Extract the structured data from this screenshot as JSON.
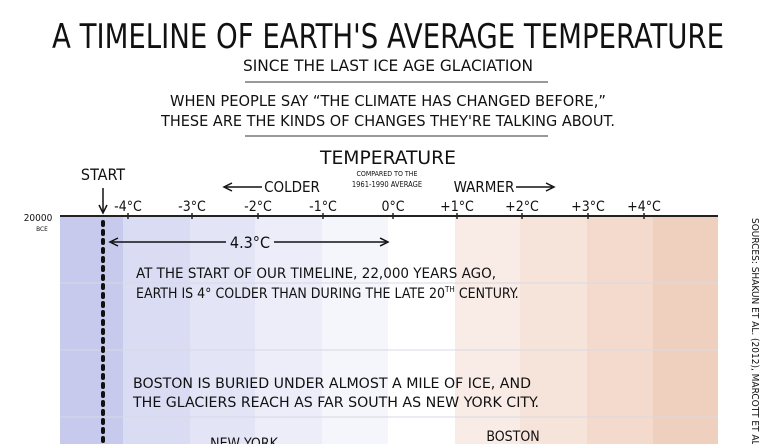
{
  "header": {
    "title": "A TIMELINE OF EARTH'S AVERAGE TEMPERATURE",
    "subtitle": "SINCE THE LAST ICE AGE GLACIATION",
    "intro": [
      "WHEN PEOPLE SAY “THE CLIMATE HAS CHANGED BEFORE,”",
      "THESE ARE THE KINDS OF CHANGES THEY'RE TALKING ABOUT."
    ]
  },
  "axis": {
    "title": "TEMPERATURE",
    "note": [
      "COMPARED TO THE",
      "1961-1990 AVERAGE"
    ],
    "colder": "COLDER",
    "warmer": "WARMER",
    "start": "START",
    "ticks": [
      "-4°C",
      "-3°C",
      "-2°C",
      "-1°C",
      "0°C",
      "+1°C",
      "+2°C",
      "+3°C",
      "+4°C"
    ]
  },
  "timeline": {
    "start_year": "20000",
    "start_era": "BCE",
    "difference": "4.3°C"
  },
  "notes": [
    [
      "AT THE START OF OUR TIMELINE, 22,000 YEARS AGO,",
      "EARTH IS 4° COLDER THAN DURING THE LATE 20",
      "TH",
      " CENTURY."
    ],
    [
      "BOSTON IS BURIED UNDER ALMOST A MILE OF ICE, AND",
      "THE GLACIERS REACH AS FAR SOUTH AS NEW YORK CITY."
    ]
  ],
  "places": [
    "NEW YORK",
    "BOSTON"
  ],
  "sources": "SOURCES: SHAKUN ET AL. (2012), MARCOTT ET AL. ("
}
